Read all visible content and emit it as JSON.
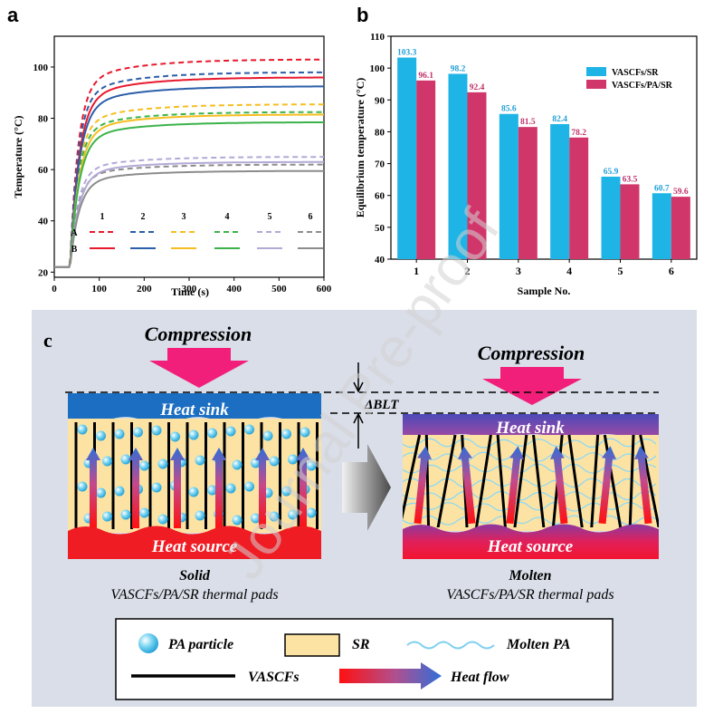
{
  "panel_labels": {
    "a": "a",
    "b": "b",
    "c": "c"
  },
  "chart_data": [
    {
      "type": "line",
      "title": "",
      "xlabel": "Time (s)",
      "ylabel": "Temperature (°C)",
      "xlim": [
        0,
        600
      ],
      "ylim": [
        18,
        112
      ],
      "xticks": [
        0,
        100,
        200,
        300,
        400,
        500,
        600
      ],
      "yticks": [
        20,
        40,
        60,
        80,
        100
      ],
      "start_temp": 22,
      "heat_on_time": 35,
      "legend": {
        "row_labels": [
          "A",
          "B"
        ],
        "column_labels": [
          "1",
          "2",
          "3",
          "4",
          "5",
          "6"
        ],
        "row_styles": {
          "A": "dashed",
          "B": "solid"
        }
      },
      "series": [
        {
          "name": "A1",
          "style": "dashed",
          "color": "#e8192c",
          "final": 103
        },
        {
          "name": "A2",
          "style": "dashed",
          "color": "#2b5ea8",
          "final": 98
        },
        {
          "name": "A3",
          "style": "dashed",
          "color": "#f6be20",
          "final": 85.5
        },
        {
          "name": "A4",
          "style": "dashed",
          "color": "#3bb34a",
          "final": 82.5
        },
        {
          "name": "A5",
          "style": "dashed",
          "color": "#b3a9d6",
          "final": 65
        },
        {
          "name": "A6",
          "style": "dashed",
          "color": "#8c8c8c",
          "final": 62
        },
        {
          "name": "B1",
          "style": "solid",
          "color": "#e8192c",
          "final": 96
        },
        {
          "name": "B2",
          "style": "solid",
          "color": "#2b5ea8",
          "final": 92.5
        },
        {
          "name": "B3",
          "style": "solid",
          "color": "#f6be20",
          "final": 81.5
        },
        {
          "name": "B4",
          "style": "solid",
          "color": "#3bb34a",
          "final": 78.5
        },
        {
          "name": "B5",
          "style": "solid",
          "color": "#b3a9d6",
          "final": 63
        },
        {
          "name": "B6",
          "style": "solid",
          "color": "#8c8c8c",
          "final": 59.5
        }
      ]
    },
    {
      "type": "bar",
      "title": "",
      "xlabel": "Sample No.",
      "ylabel": "Equilibrium temperature (°C)",
      "ylim": [
        40,
        110
      ],
      "yticks": [
        40,
        50,
        60,
        70,
        80,
        90,
        100,
        110
      ],
      "categories": [
        "1",
        "2",
        "3",
        "4",
        "5",
        "6"
      ],
      "series": [
        {
          "name": "VASCFs/SR",
          "color": "#1fb4e6",
          "label_color": "#1fa0d8",
          "values": [
            103.3,
            98.2,
            85.6,
            82.4,
            65.9,
            60.7
          ]
        },
        {
          "name": "VASCFs/PA/SR",
          "color": "#d1366b",
          "label_color": "#c0306a",
          "values": [
            96.1,
            92.4,
            81.5,
            78.2,
            63.5,
            59.6
          ]
        }
      ]
    }
  ],
  "schematic": {
    "compression_left": "Compression",
    "compression_right": "Compression",
    "heat_sink_left": "Heat sink",
    "heat_sink_right": "Heat sink",
    "heat_source_left": "Heat source",
    "heat_source_right": "Heat source",
    "delta_blt": "ΔBLT",
    "caption_left_line1": "Solid",
    "caption_left_line2": "VASCFs/PA/SR thermal pads",
    "caption_right_line1": "Molten",
    "caption_right_line2": "VASCFs/PA/SR thermal pads",
    "legend_pa_particle": "PA particle",
    "legend_sr": "SR",
    "legend_molten_pa": "Molten PA",
    "legend_vascfs": "VASCFs",
    "legend_heat_flow": "Heat flow"
  },
  "watermark": "Journal Pre-proof"
}
